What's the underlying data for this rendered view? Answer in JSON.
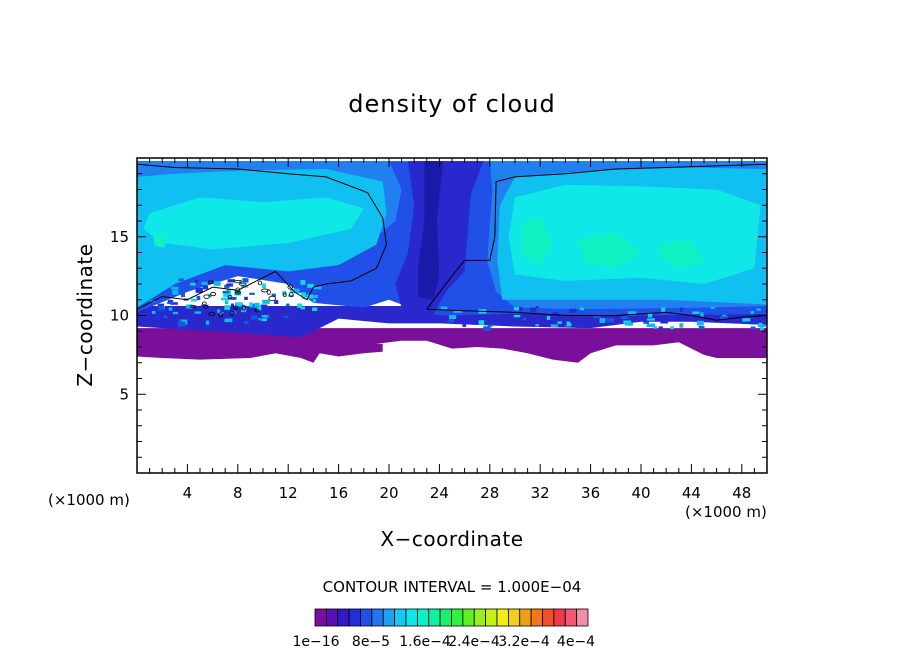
{
  "chart_data": {
    "type": "heatmap",
    "title": "density of cloud",
    "xlabel": "X−coordinate",
    "ylabel": "Z−coordinate",
    "x_unit": "(×1000 m)",
    "y_unit": "(×1000 m)",
    "xlim": [
      0,
      50
    ],
    "ylim": [
      0,
      20
    ],
    "x_ticks": [
      4,
      8,
      12,
      16,
      20,
      24,
      28,
      32,
      36,
      40,
      44,
      48
    ],
    "y_ticks": [
      5,
      10,
      15
    ],
    "contour_interval_text": "CONTOUR INTERVAL = 1.000E−04",
    "colorbar_labels": [
      "1e−16",
      "8e−5",
      "1.6e−4",
      "2.4e−4",
      "3.2e−4",
      "4e−4"
    ],
    "colorbar_colors": [
      "#7a0f9a",
      "#5a10b8",
      "#3418c8",
      "#2030d8",
      "#2050e8",
      "#2078f0",
      "#20a0f0",
      "#18c8f0",
      "#10e8e8",
      "#10f0c8",
      "#10f0a0",
      "#18f070",
      "#30f040",
      "#60f020",
      "#98f018",
      "#c8f018",
      "#f0f018",
      "#f0d018",
      "#f0a018",
      "#f07818",
      "#f05028",
      "#f03848",
      "#f05878",
      "#f090a8"
    ],
    "field_colors": {
      "purple": "#7a0f9a",
      "dark_blue": "#2828cc",
      "blue": "#2050e8",
      "mid_blue": "#2080f0",
      "light_blue": "#10c0f0",
      "cyan": "#10e8e8",
      "aqua": "#10f0c0"
    }
  }
}
